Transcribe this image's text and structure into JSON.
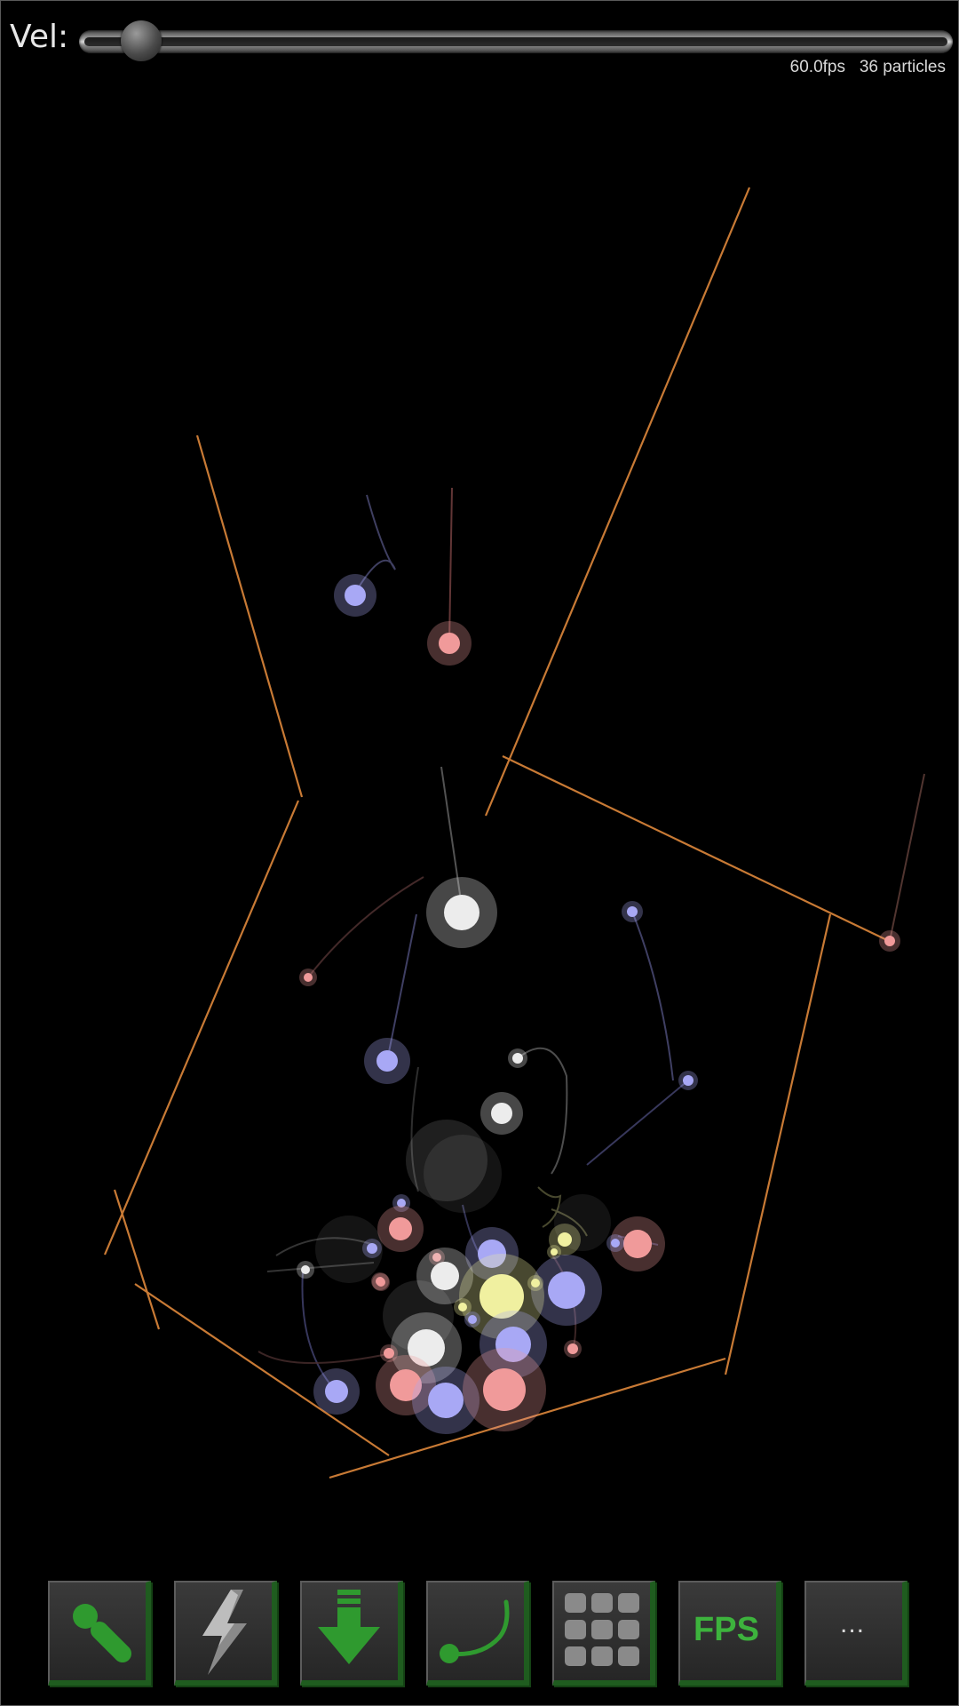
{
  "header": {
    "vel_label": "Vel:",
    "slider_value_fraction": 0.05,
    "fps": "60.0fps",
    "particle_count": "36 particles"
  },
  "colors": {
    "wall": "#c87a35",
    "particle_blue": "#a8a8f5",
    "particle_pink": "#f09a9a",
    "particle_white": "#ececec",
    "particle_yellow": "#f0f0a0",
    "toolbar_green": "#3db33d"
  },
  "toolbar": {
    "buttons": [
      {
        "name": "add-particle-button",
        "icon": "particle-icon"
      },
      {
        "name": "lightning-button",
        "icon": "lightning-icon"
      },
      {
        "name": "gravity-button",
        "icon": "down-arrow-icon"
      },
      {
        "name": "trail-button",
        "icon": "trail-icon"
      },
      {
        "name": "grid-button",
        "icon": "grid-icon"
      },
      {
        "name": "fps-button",
        "label": "FPS"
      },
      {
        "name": "more-button",
        "label": "..."
      }
    ]
  }
}
